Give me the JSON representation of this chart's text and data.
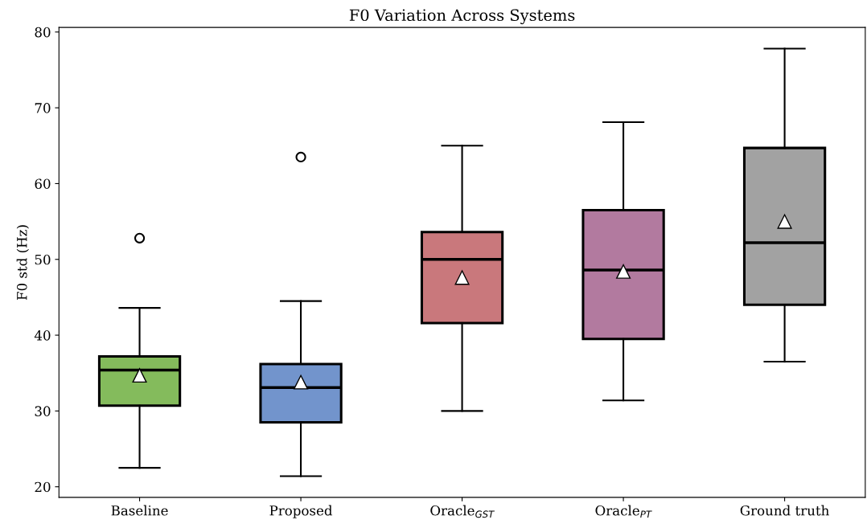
{
  "chart_data": {
    "type": "box",
    "title": "F0 Variation Across Systems",
    "ylabel": "F0 std (Hz)",
    "categories": [
      "Baseline",
      "Proposed",
      "Oracle$_{GST}$",
      "Oracle$_{PT}$",
      "Ground truth"
    ],
    "colors": [
      "#84bb5c",
      "#7294cc",
      "#c9787c",
      "#b27a9f",
      "#a2a2a2"
    ],
    "boxes": [
      {
        "low": 22.5,
        "q1": 30.7,
        "median": 35.4,
        "q3": 37.2,
        "high": 43.6,
        "mean": 34.7,
        "outliers": [
          52.8
        ]
      },
      {
        "low": 21.4,
        "q1": 28.5,
        "median": 33.1,
        "q3": 36.2,
        "high": 44.5,
        "mean": 33.8,
        "outliers": [
          63.5
        ]
      },
      {
        "low": 30.0,
        "q1": 41.6,
        "median": 50.0,
        "q3": 53.6,
        "high": 65.0,
        "mean": 47.6
      },
      {
        "low": 31.4,
        "q1": 39.5,
        "median": 48.6,
        "q3": 56.5,
        "high": 68.1,
        "mean": 48.4
      },
      {
        "low": 36.5,
        "q1": 44.0,
        "median": 52.2,
        "q3": 64.7,
        "high": 77.8,
        "mean": 55.0
      }
    ],
    "ylim": [
      18.6,
      80.6
    ],
    "yticks": [
      20,
      30,
      40,
      50,
      60,
      70,
      80
    ],
    "grid": false
  }
}
